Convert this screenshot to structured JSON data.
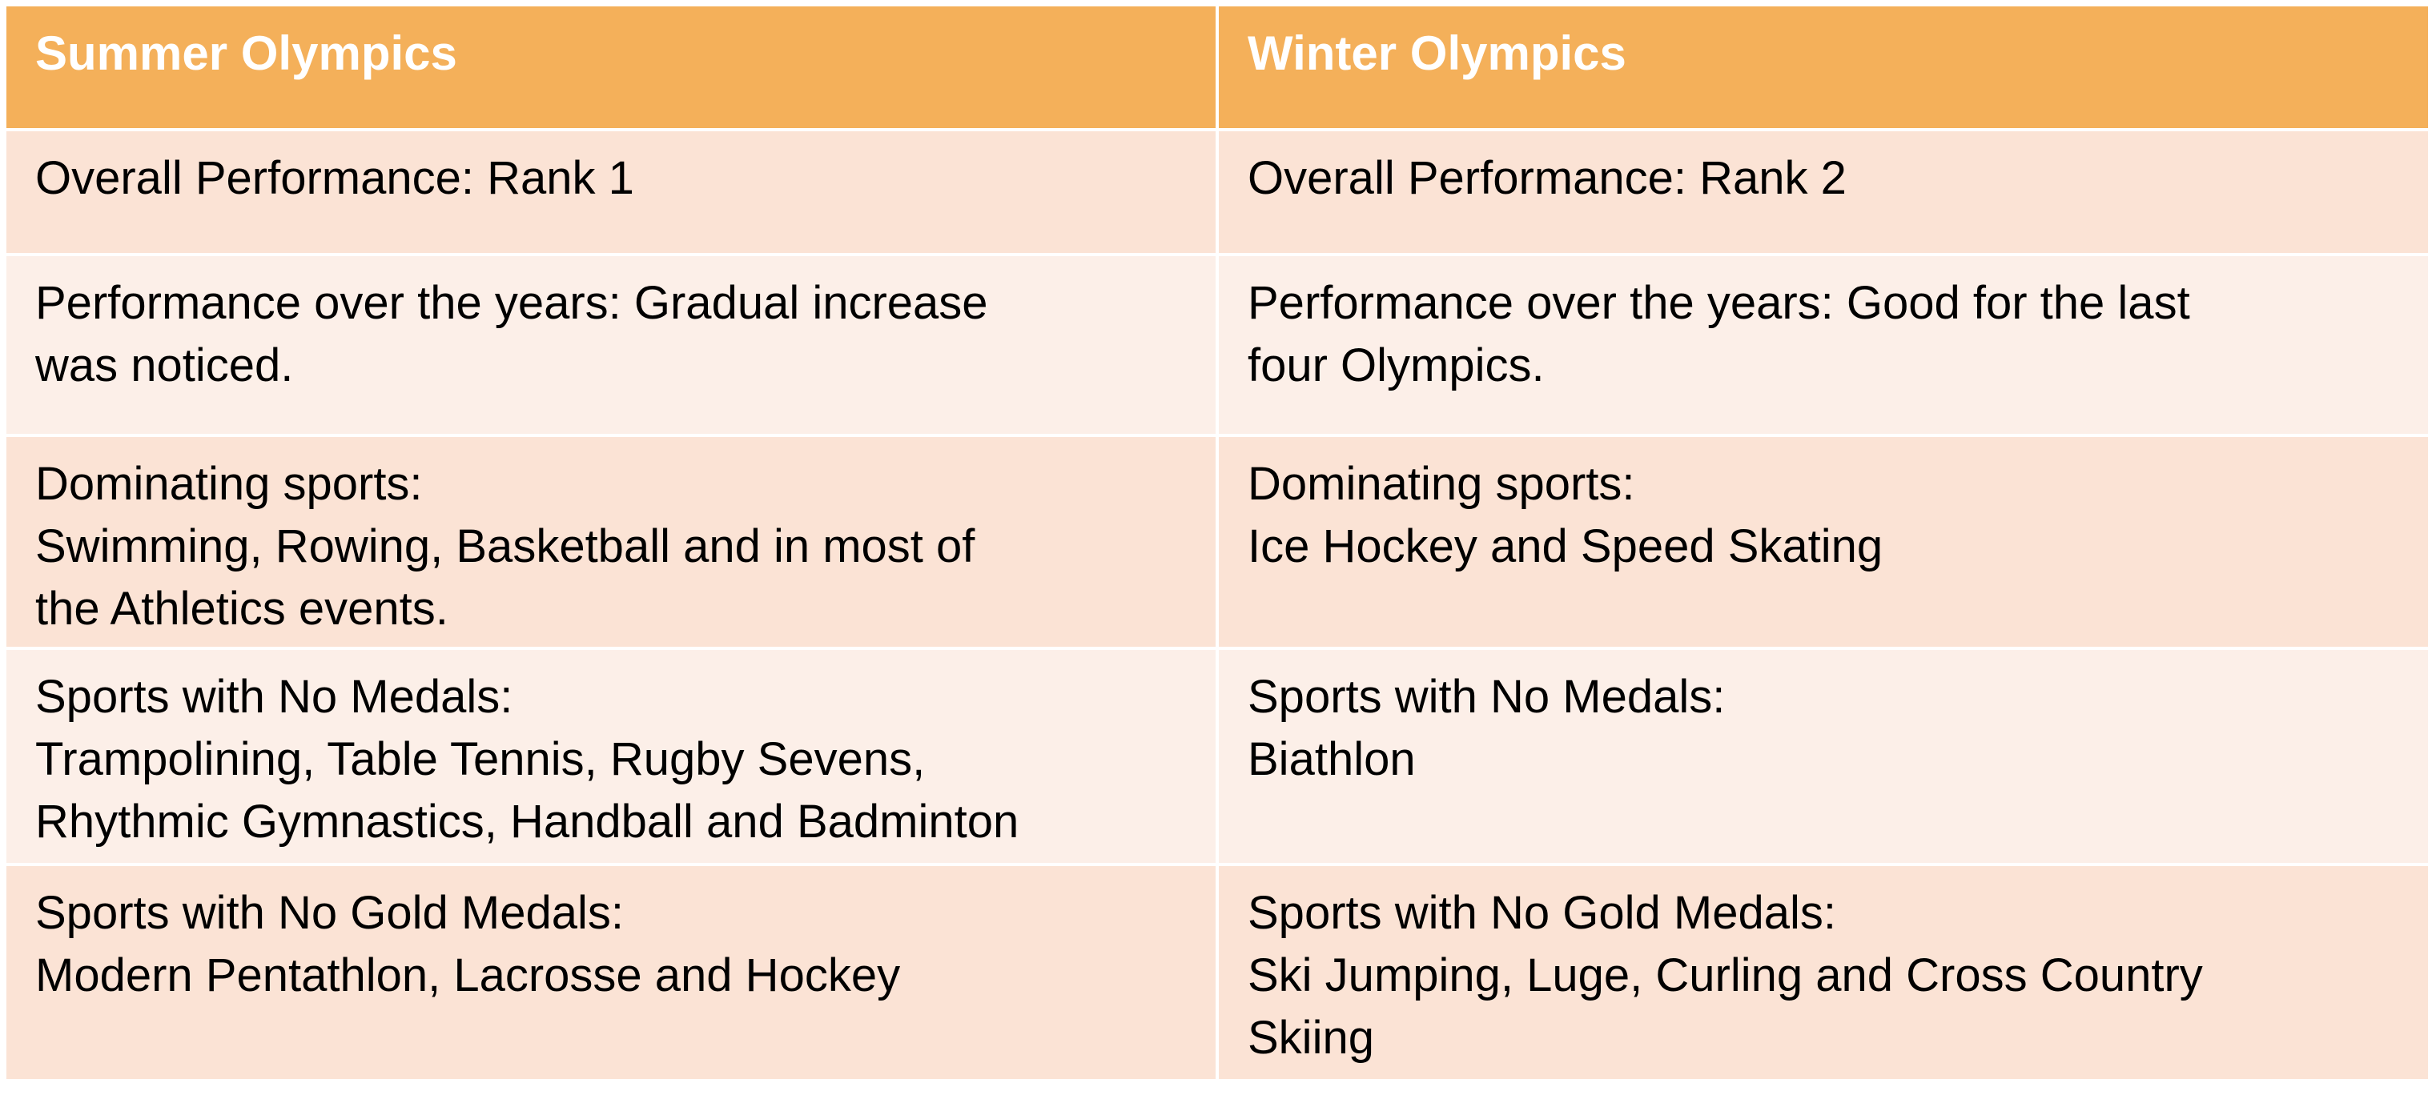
{
  "table": {
    "headers": [
      "Summer Olympics",
      "Winter Olympics"
    ],
    "rows": [
      {
        "summer": [
          "Overall Performance: Rank 1"
        ],
        "winter": [
          "Overall Performance: Rank 2"
        ]
      },
      {
        "summer": [
          "Performance over the years: Gradual increase",
          "was noticed."
        ],
        "winter": [
          "Performance over the years: Good for the last",
          "four Olympics."
        ]
      },
      {
        "summer": [
          "Dominating sports:",
          "Swimming, Rowing, Basketball and in most of",
          "the Athletics events."
        ],
        "winter": [
          "Dominating sports:",
          "Ice Hockey and Speed Skating"
        ]
      },
      {
        "summer": [
          "Sports with No Medals:",
          "Trampolining, Table Tennis, Rugby Sevens,",
          "Rhythmic Gymnastics, Handball and Badminton"
        ],
        "winter": [
          "Sports with No Medals:",
          "Biathlon"
        ]
      },
      {
        "summer": [
          "Sports with No Gold Medals:",
          "Modern Pentathlon, Lacrosse and Hockey"
        ],
        "winter": [
          "Sports with No Gold Medals:",
          "Ski Jumping, Luge, Curling and Cross Country",
          "Skiing"
        ]
      }
    ]
  },
  "colors": {
    "header_bg": "#f4b05a",
    "header_text": "#ffffff",
    "row_dark": "#fbe3d5",
    "row_light": "#fcefe8"
  }
}
